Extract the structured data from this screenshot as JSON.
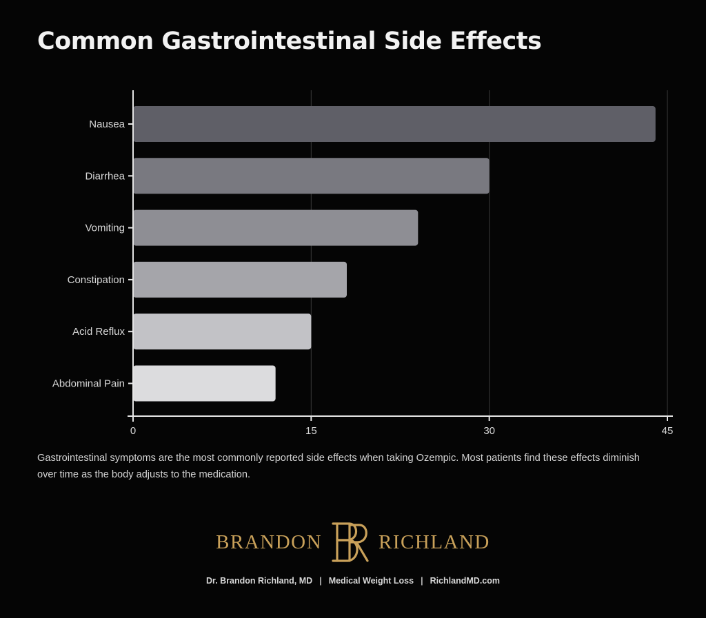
{
  "chart_data": {
    "type": "bar",
    "orientation": "horizontal",
    "title": "Common Gastrointestinal Side Effects",
    "categories": [
      "Nausea",
      "Diarrhea",
      "Vomiting",
      "Constipation",
      "Acid Reflux",
      "Abdominal Pain"
    ],
    "values": [
      44,
      30,
      24,
      18,
      15,
      12
    ],
    "xlabel": "",
    "ylabel": "",
    "xlim": [
      0,
      45
    ],
    "xticks": [
      0,
      15,
      30,
      45
    ],
    "grid": true,
    "bar_colors": [
      "#5f5f67",
      "#797980",
      "#8e8e94",
      "#a5a5aa",
      "#c2c2c6",
      "#dcdcde"
    ]
  },
  "caption": "Gastrointestinal symptoms are the most commonly reported side effects when taking Ozempic. Most patients find these effects diminish over time as the body adjusts to the medication.",
  "brand": {
    "left_word": "BRANDON",
    "right_word": "RICHLAND",
    "monogram": "BR",
    "color": "#c9a15a"
  },
  "footer": {
    "items": [
      "Dr. Brandon Richland, MD",
      "Medical Weight Loss",
      "RichlandMD.com"
    ],
    "separator": "|"
  }
}
